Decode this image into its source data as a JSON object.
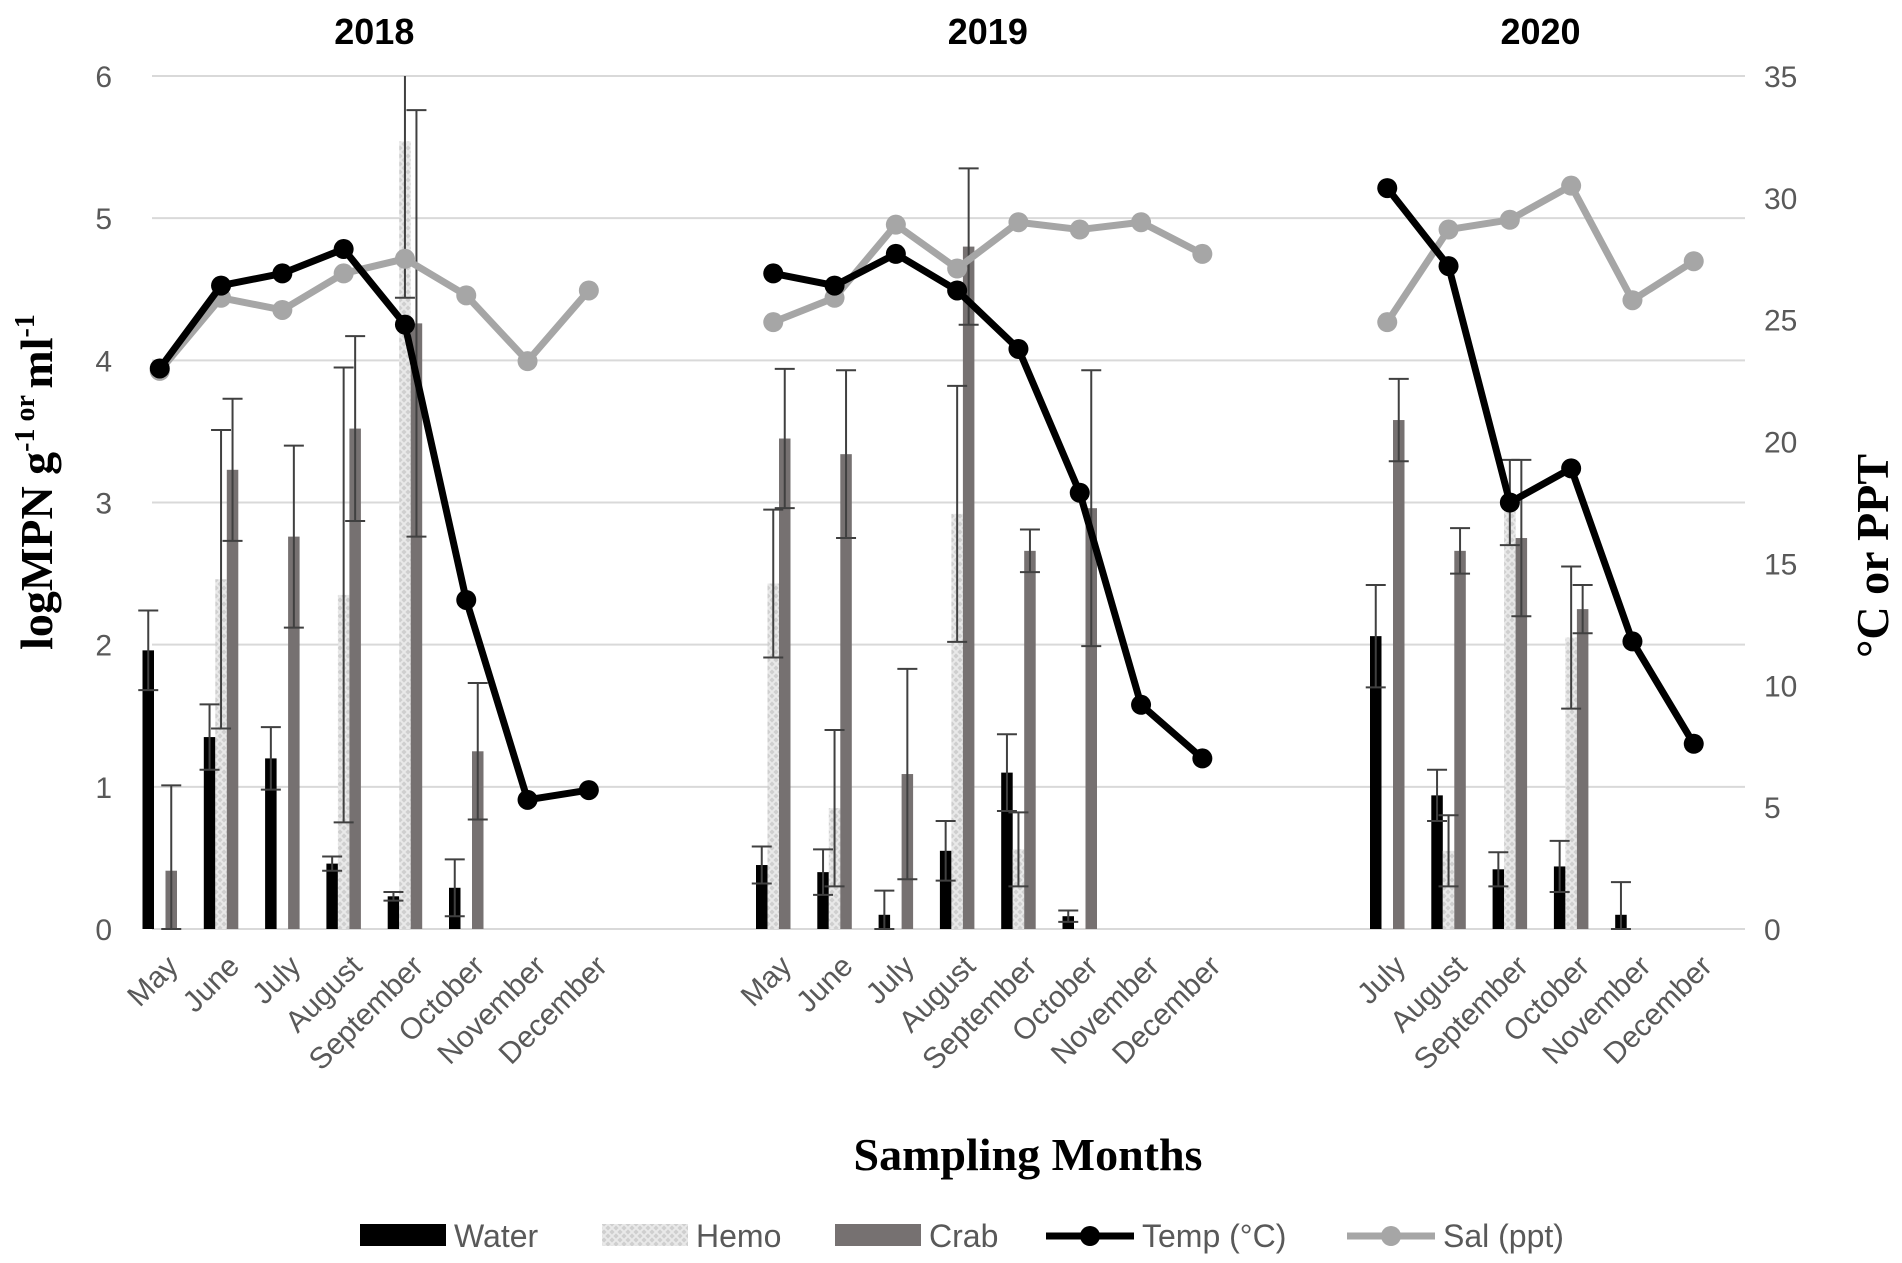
{
  "chart_data": {
    "type": "bar",
    "title": "",
    "xlabel": "Sampling Months",
    "ylabel": "logMPN g-1 or ml-1",
    "ylabel_parts": {
      "base": "logMPN g",
      "sup1": "-1 or ",
      "ml": "ml",
      "sup2": "-1"
    },
    "y2label": "°C or PPT",
    "ylim": [
      0,
      6
    ],
    "y2lim": [
      0,
      35
    ],
    "yticks": [
      "0",
      "1",
      "2",
      "3",
      "4",
      "5",
      "6"
    ],
    "y2ticks": [
      "0",
      "5",
      "10",
      "15",
      "20",
      "25",
      "30",
      "35"
    ],
    "grid": true,
    "legend_position": "bottom",
    "colors": {
      "water": "#000000",
      "hemo": "#c8c8c8",
      "crab": "#767171",
      "temp": "#000000",
      "sal": "#a6a6a6"
    },
    "legend": [
      {
        "key": "water",
        "label": "Water",
        "kind": "bar"
      },
      {
        "key": "hemo",
        "label": "Hemo",
        "kind": "bar"
      },
      {
        "key": "crab",
        "label": "Crab",
        "kind": "bar"
      },
      {
        "key": "temp",
        "label": "Temp (°C)",
        "kind": "line"
      },
      {
        "key": "sal",
        "label": "Sal (ppt)",
        "kind": "line"
      }
    ],
    "groups": [
      {
        "year": "2018",
        "months": [
          "May",
          "June",
          "July",
          "August",
          "September",
          "October",
          "November",
          "December"
        ],
        "water": [
          1.96,
          1.35,
          1.2,
          0.46,
          0.23,
          0.29,
          null,
          null
        ],
        "water_err": [
          0.28,
          0.23,
          0.22,
          0.05,
          0.03,
          0.2,
          null,
          null
        ],
        "hemo": [
          null,
          2.46,
          null,
          2.35,
          5.54,
          null,
          null,
          null
        ],
        "hemo_err": [
          null,
          1.05,
          null,
          1.6,
          1.1,
          null,
          null,
          null
        ],
        "crab": [
          0.41,
          3.23,
          2.76,
          3.52,
          4.26,
          1.25,
          null,
          null
        ],
        "crab_err": [
          0.6,
          0.5,
          0.64,
          0.65,
          1.5,
          0.48,
          null,
          null
        ],
        "temp": [
          23,
          26.4,
          26.9,
          27.9,
          24.8,
          13.5,
          5.3,
          5.7
        ],
        "sal": [
          22.9,
          25.9,
          25.4,
          26.9,
          27.5,
          26,
          23.3,
          26.2
        ]
      },
      {
        "year": "2019",
        "months": [
          "May",
          "June",
          "July",
          "August",
          "September",
          "October",
          "November",
          "December"
        ],
        "water": [
          0.45,
          0.4,
          0.1,
          0.55,
          1.1,
          0.09,
          null,
          null
        ],
        "water_err": [
          0.13,
          0.16,
          0.17,
          0.21,
          0.27,
          0.04,
          null,
          null
        ],
        "hemo": [
          2.43,
          0.85,
          null,
          2.92,
          0.56,
          null,
          null,
          null
        ],
        "hemo_err": [
          0.52,
          0.55,
          null,
          0.9,
          0.26,
          null,
          null,
          null
        ],
        "crab": [
          3.45,
          3.34,
          1.09,
          4.8,
          2.66,
          2.96,
          null,
          null
        ],
        "crab_err": [
          0.49,
          0.59,
          0.74,
          0.55,
          0.15,
          0.97,
          null,
          null
        ],
        "temp": [
          26.9,
          26.4,
          27.7,
          26.2,
          23.8,
          17.9,
          9.2,
          7
        ],
        "sal": [
          24.9,
          25.9,
          28.9,
          27.1,
          29,
          28.7,
          29,
          27.7
        ]
      },
      {
        "year": "2020",
        "months": [
          "July",
          "August",
          "September",
          "October",
          "November",
          "December"
        ],
        "water": [
          2.06,
          0.94,
          0.42,
          0.44,
          0.1,
          null
        ],
        "water_err": [
          0.36,
          0.18,
          0.12,
          0.18,
          0.23,
          null
        ],
        "hemo": [
          null,
          0.55,
          3.0,
          2.05,
          null,
          null
        ],
        "hemo_err": [
          null,
          0.25,
          0.3,
          0.5,
          null,
          null
        ],
        "crab": [
          3.58,
          2.66,
          2.75,
          2.25,
          null,
          null
        ],
        "crab_err": [
          0.29,
          0.16,
          0.55,
          0.17,
          null,
          null
        ],
        "temp": [
          30.4,
          27.2,
          17.5,
          18.9,
          11.8,
          7.6
        ],
        "sal": [
          24.9,
          28.7,
          29.1,
          30.5,
          25.8,
          27.4
        ]
      }
    ]
  }
}
